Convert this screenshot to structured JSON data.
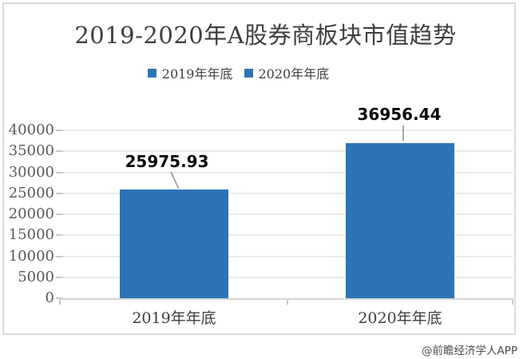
{
  "title": "2019-2020年A股券商板块市值趋势",
  "watermark": "@前瞻经济学人APP",
  "legend": [
    "2019年年底",
    "2020年年底"
  ],
  "colors": {
    "bar": "#2e74b5",
    "title_text": "#3f3f3f",
    "axis_text": "#595959",
    "gridline": "#eaeaea",
    "axis_line": "#d4d4d4",
    "leader_line": "#a6a6a6",
    "frame_border": "#dbdbdb"
  },
  "chart_data": {
    "type": "bar",
    "title": "2019-2020年A股券商板块市值趋势",
    "categories": [
      "2019年年底",
      "2020年年底"
    ],
    "values": [
      25975.93,
      36956.44
    ],
    "data_labels": [
      "25975.93",
      "36956.44"
    ],
    "legend": [
      "2019年年底",
      "2020年年底"
    ],
    "legend_position": "top-center",
    "xlabel": "",
    "ylabel": "",
    "ylim": [
      0,
      40000
    ],
    "ytick_step": 5000,
    "ytick_labels": [
      "0",
      "5000",
      "10000",
      "15000",
      "20000",
      "25000",
      "30000",
      "35000",
      "40000"
    ],
    "grid": true
  }
}
